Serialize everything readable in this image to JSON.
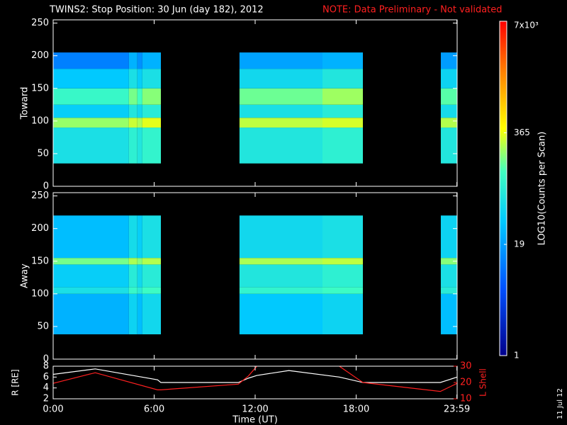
{
  "title": "TWINS2: Stop Position: 30 Jun (day 182), 2012",
  "note": "NOTE: Data Preliminary - Not validated",
  "side_note": "11 Jul 12",
  "colorbar": {
    "label": "LOG10(Counts per Scan)",
    "lim": [
      1,
      7000
    ],
    "log": true,
    "ticks": [
      1,
      19,
      365,
      {
        "value": 7000,
        "label": "7x10³"
      }
    ]
  },
  "chart_data": [
    {
      "type": "heatmap",
      "ylabel": "Toward",
      "x_edges": [
        0,
        4.5,
        5.0,
        5.3,
        6.4,
        11.07,
        16.0,
        18.4,
        23.03,
        24
      ],
      "y_edges": [
        0,
        35,
        90,
        105,
        125,
        150,
        180,
        205,
        255
      ],
      "z": [
        [
          null,
          60,
          220,
          40,
          110,
          35,
          12,
          null
        ],
        [
          null,
          90,
          300,
          70,
          180,
          60,
          25,
          null
        ],
        [
          null,
          70,
          250,
          50,
          130,
          40,
          15,
          null
        ],
        [
          null,
          100,
          350,
          80,
          200,
          60,
          25,
          null
        ],
        [
          null,
          null,
          null,
          null,
          null,
          null,
          null,
          null
        ],
        [
          null,
          70,
          280,
          60,
          170,
          50,
          20,
          null
        ],
        [
          null,
          90,
          320,
          80,
          230,
          70,
          25,
          null
        ],
        [
          null,
          null,
          null,
          null,
          null,
          null,
          null,
          null
        ],
        [
          null,
          70,
          260,
          55,
          150,
          45,
          18,
          null
        ]
      ],
      "xlim": [
        0,
        24
      ],
      "ylim": [
        0,
        255
      ],
      "yticks": [
        0,
        50,
        100,
        150,
        200,
        250
      ]
    },
    {
      "type": "heatmap",
      "ylabel": "Away",
      "x_edges": [
        0,
        4.5,
        5.0,
        5.3,
        6.4,
        11.07,
        16.0,
        18.4,
        23.03,
        24
      ],
      "y_edges": [
        0,
        38,
        100,
        110,
        145,
        155,
        220,
        255
      ],
      "z": [
        [
          null,
          25,
          60,
          40,
          180,
          30,
          null
        ],
        [
          null,
          45,
          110,
          80,
          250,
          55,
          null
        ],
        [
          null,
          30,
          80,
          50,
          200,
          40,
          null
        ],
        [
          null,
          50,
          120,
          80,
          260,
          60,
          null
        ],
        [
          null,
          null,
          null,
          null,
          null,
          null,
          null
        ],
        [
          null,
          35,
          100,
          70,
          250,
          50,
          null
        ],
        [
          null,
          45,
          120,
          90,
          280,
          60,
          null
        ],
        [
          null,
          null,
          null,
          null,
          null,
          null,
          null
        ],
        [
          null,
          30,
          80,
          60,
          200,
          45,
          null
        ]
      ],
      "xlim": [
        0,
        24
      ],
      "ylim": [
        0,
        255
      ],
      "yticks": [
        0,
        50,
        100,
        150,
        200,
        250
      ]
    },
    {
      "type": "line",
      "xlabel": "Time (UT)",
      "ylabel": "R [RE]",
      "y2label": "L Shell",
      "x": [
        0,
        2.5,
        6.2,
        6.4,
        11.0,
        11.6,
        12.1,
        14.0,
        17.0,
        18.4,
        23.0,
        24
      ],
      "series": [
        {
          "name": "R",
          "color": "#ffffff",
          "values": [
            6.5,
            7.5,
            5.5,
            5.0,
            5.0,
            5.8,
            6.3,
            7.2,
            6.0,
            5.0,
            5.0,
            6.0
          ]
        },
        {
          "name": "L Shell",
          "color": "#ff2020",
          "axis": "y2",
          "values": [
            19.5,
            26,
            15.5,
            15.5,
            19,
            24,
            30,
            null,
            30,
            20,
            14.5,
            19.5
          ]
        }
      ],
      "xlim": [
        0,
        24
      ],
      "ylim": [
        2,
        8
      ],
      "yticks": [
        2,
        4,
        6,
        8
      ],
      "y2lim": [
        10,
        30
      ],
      "y2ticks": [
        10,
        20,
        30
      ],
      "xticks": [
        {
          "value": 0,
          "label": "0:00"
        },
        {
          "value": 6,
          "label": "6:00"
        },
        {
          "value": 12,
          "label": "12:00"
        },
        {
          "value": 18,
          "label": "18:00"
        },
        {
          "value": 23.983,
          "label": "23:59"
        }
      ]
    }
  ]
}
